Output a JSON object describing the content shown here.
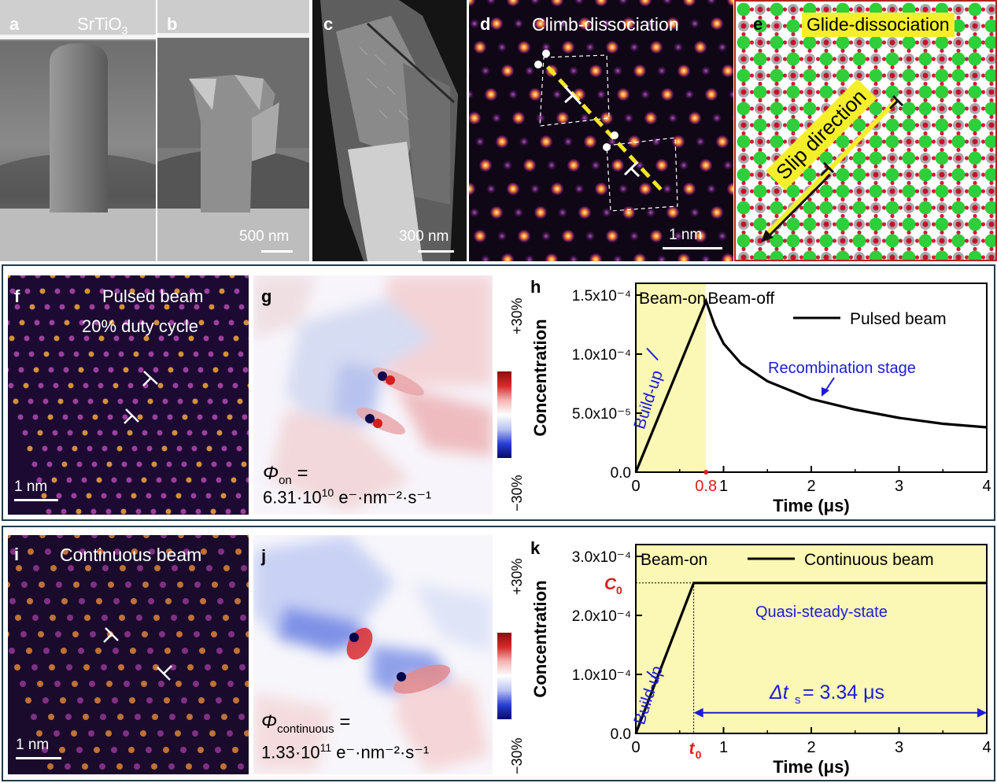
{
  "top": {
    "a": {
      "label": "a",
      "title": "SrTiO",
      "title_sub": "3"
    },
    "b": {
      "label": "b",
      "scalebar": "500 nm"
    },
    "c": {
      "label": "c",
      "scalebar": "300 nm"
    },
    "d": {
      "label": "d",
      "title": "Climb-dissociation",
      "scalebar": "1 nm"
    },
    "e": {
      "label": "e",
      "title": "Glide-dissociation",
      "slip": "Slip direction"
    }
  },
  "row_pulsed": {
    "f": {
      "label": "f",
      "title1": "Pulsed beam",
      "title2": "20% duty cycle",
      "scalebar": "1 nm"
    },
    "g": {
      "label": "g",
      "phi_symbol": "Φ",
      "phi_sub": "on",
      "eq": "=",
      "value": "6.31·10",
      "exp": "10",
      "units": " e⁻·nm⁻²·s⁻¹",
      "cb_top": "+30%",
      "cb_bottom": "−30%"
    },
    "h": {
      "label": "h",
      "beam_on": "Beam-on",
      "beam_off": "Beam-off",
      "legend": "Pulsed beam",
      "recomb": "Recombination stage",
      "buildup": "Build-up",
      "mark": "0.8"
    }
  },
  "row_continuous": {
    "i": {
      "label": "i",
      "title": "Continuous beam",
      "scalebar": "1 nm"
    },
    "j": {
      "label": "j",
      "phi_symbol": "Φ",
      "phi_sub": "continuous",
      "eq": "=",
      "value": "1.33·10",
      "exp": "11",
      "units": " e⁻·nm⁻²·s⁻¹",
      "cb_top": "+30%",
      "cb_bottom": "−30%"
    },
    "k": {
      "label": "k",
      "beam_on": "Beam-on",
      "legend": "Continuous beam",
      "steady": "Quasi-steady-state",
      "buildup": "Build-up",
      "c0": "C",
      "c0_sub": "0",
      "t0": "t",
      "t0_sub": "0",
      "dt_sym": "Δt",
      "dt_sub": "s",
      "dt_val": " = 3.34 μs"
    }
  },
  "colors": {
    "beam_on_fill": "#fbf7b5",
    "annotation_blue": "#1c1cd6",
    "mark_red": "#e11b1b",
    "frame": "#1f3b4d"
  },
  "chart_data": [
    {
      "panel": "h",
      "type": "line",
      "xlabel": "Time (μs)",
      "ylabel": "Concentration",
      "xlim": [
        0,
        4
      ],
      "ylim": [
        0,
        0.00016
      ],
      "x_ticks": [
        "0",
        "1",
        "2",
        "3",
        "4"
      ],
      "y_ticks": [
        "0.0",
        "5.0x10⁻⁵",
        "1.0x10⁻⁴",
        "1.5x10⁻⁴"
      ],
      "series": [
        {
          "name": "Pulsed beam",
          "x": [
            0,
            0.8,
            0.9,
            1.0,
            1.2,
            1.5,
            2.0,
            2.5,
            3.0,
            3.5,
            4.0
          ],
          "y": [
            0,
            0.000145,
            0.000124,
            0.000109,
            9.2e-05,
            7.7e-05,
            6.2e-05,
            5.3e-05,
            4.6e-05,
            4.1e-05,
            3.8e-05
          ]
        }
      ]
    },
    {
      "panel": "k",
      "type": "line",
      "xlabel": "Time (μs)",
      "ylabel": "Concentration",
      "xlim": [
        0,
        4
      ],
      "ylim": [
        0,
        0.00032
      ],
      "x_ticks": [
        "0",
        "1",
        "2",
        "3",
        "4"
      ],
      "y_ticks": [
        "0.0",
        "1.0x10⁻⁴",
        "2.0x10⁻⁴",
        "3.0x10⁻⁴"
      ],
      "series": [
        {
          "name": "Continuous beam",
          "x": [
            0,
            0.66,
            4.0
          ],
          "y": [
            0,
            0.000255,
            0.000255
          ]
        }
      ]
    }
  ]
}
